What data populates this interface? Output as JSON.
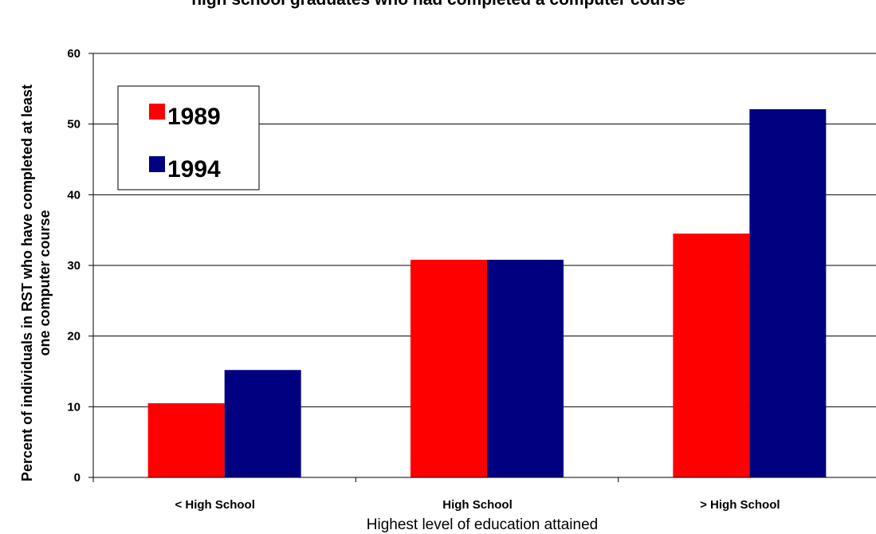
{
  "chart_data": {
    "type": "bar",
    "title": "high school graduates who had completed a computer course",
    "xlabel": "Highest level of education attained",
    "ylabel_line1": "Percent of individuals in RST who have completed at least",
    "ylabel_line2": "one computer course",
    "categories": [
      "< High School",
      "High School",
      "> High School"
    ],
    "series": [
      {
        "name": "1989",
        "values": [
          10.5,
          30.8,
          34.5
        ],
        "color": "#ff0000"
      },
      {
        "name": "1994",
        "values": [
          15.2,
          30.8,
          52.1
        ],
        "color": "#000080"
      }
    ],
    "ylim": [
      0,
      60
    ],
    "yticks": [
      0,
      10,
      20,
      30,
      40,
      50,
      60
    ],
    "grid": true,
    "legend_position": "top-left"
  }
}
